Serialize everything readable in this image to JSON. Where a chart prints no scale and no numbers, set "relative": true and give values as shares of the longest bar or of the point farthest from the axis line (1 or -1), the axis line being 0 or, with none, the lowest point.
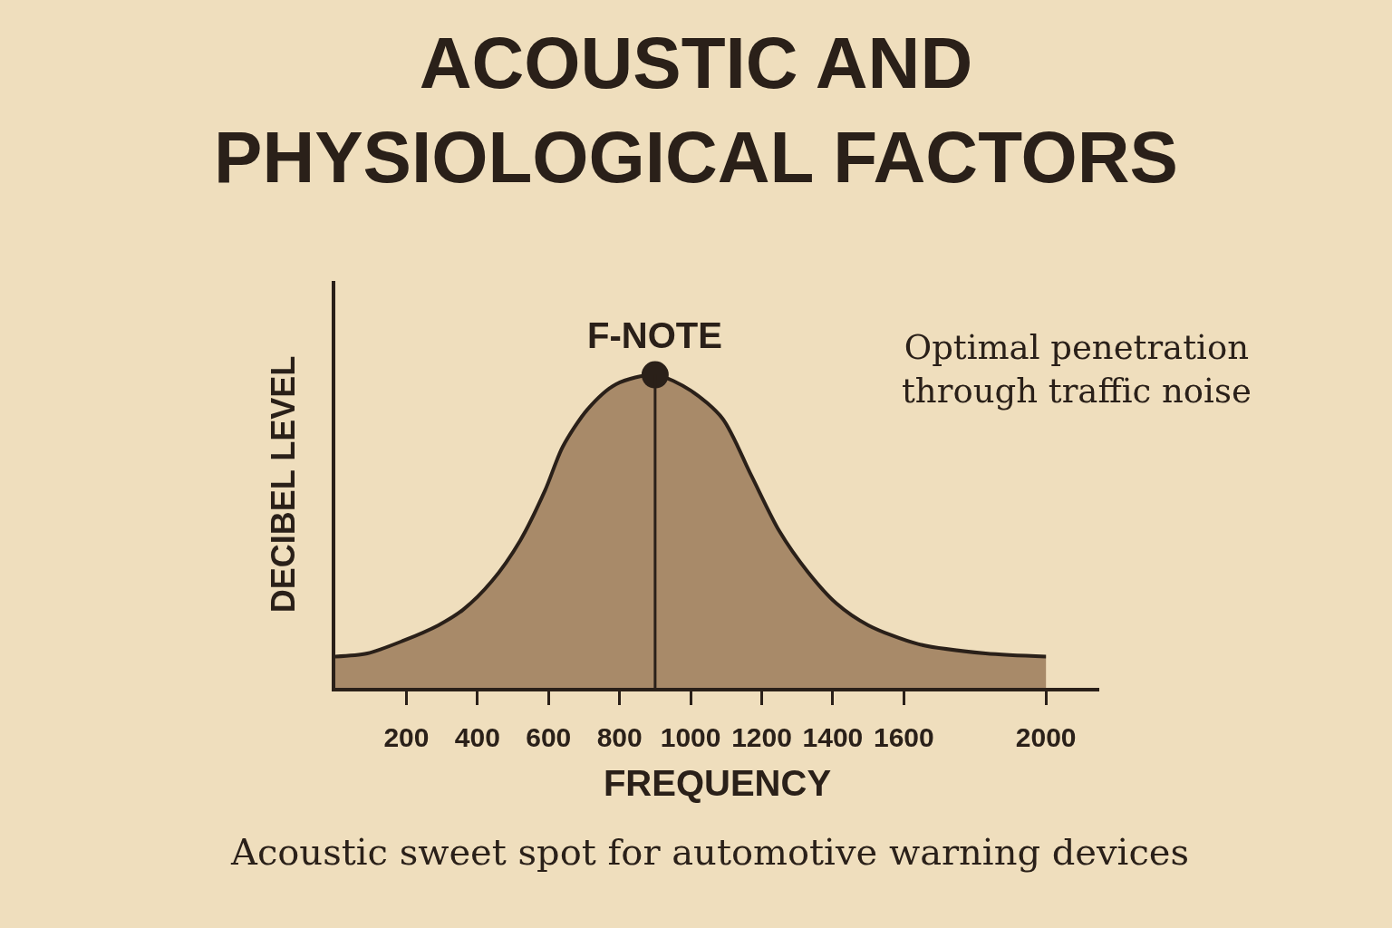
{
  "chart_data": {
    "type": "area",
    "title": "ACOUSTIC AND\nPHYSIOLOGICAL FACTORS",
    "xlabel": "FREQUENCY",
    "ylabel": "DECIBEL LEVEL",
    "relative": true,
    "x": [
      0,
      90,
      190,
      290,
      360,
      440,
      520,
      590,
      640,
      710,
      790,
      900,
      1000,
      1090,
      1170,
      1250,
      1330,
      1410,
      1500,
      1640,
      1830,
      2000
    ],
    "series": [
      {
        "color": "#a88a69",
        "values": [
          0.1,
          0.11,
          0.15,
          0.2,
          0.25,
          0.34,
          0.47,
          0.63,
          0.77,
          0.89,
          0.97,
          1,
          0.95,
          0.86,
          0.68,
          0.5,
          0.37,
          0.27,
          0.2,
          0.14,
          0.11,
          0.1
        ]
      },
      {
        "type": "scatter",
        "x": [
          900
        ],
        "values": [
          1
        ],
        "color": "#2a2019",
        "marker": "circle"
      }
    ],
    "xlim": [
      0,
      2150
    ],
    "xticks": [
      200,
      400,
      600,
      800,
      1000,
      1200,
      1400,
      1600,
      2000
    ],
    "ref_lines": [
      {
        "axis": "x",
        "value": 900,
        "label": "F-NOTE",
        "color": "#2a2019"
      }
    ],
    "annotations": [
      "Optimal penetration\nthrough traffic noise",
      "Acoustic sweet spot for automotive warning devices"
    ]
  }
}
